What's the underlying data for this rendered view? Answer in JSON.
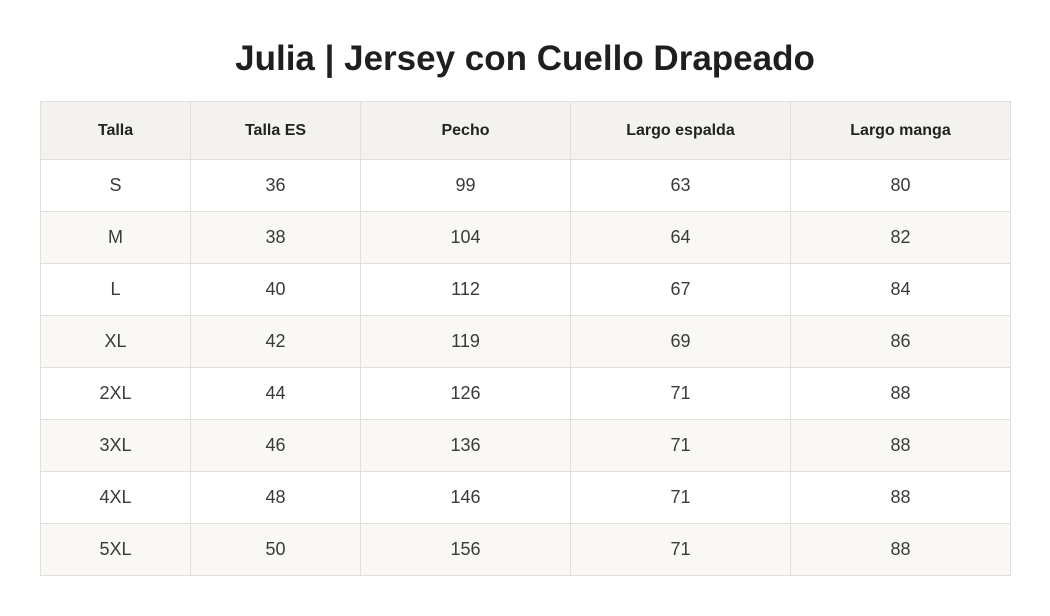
{
  "title": "Julia | Jersey con Cuello Drapeado",
  "table": {
    "headers": [
      "Talla",
      "Talla ES",
      "Pecho",
      "Largo espalda",
      "Largo manga"
    ],
    "rows": [
      [
        "S",
        "36",
        "99",
        "63",
        "80"
      ],
      [
        "M",
        "38",
        "104",
        "64",
        "82"
      ],
      [
        "L",
        "40",
        "112",
        "67",
        "84"
      ],
      [
        "XL",
        "42",
        "119",
        "69",
        "86"
      ],
      [
        "2XL",
        "44",
        "126",
        "71",
        "88"
      ],
      [
        "3XL",
        "46",
        "136",
        "71",
        "88"
      ],
      [
        "4XL",
        "48",
        "146",
        "71",
        "88"
      ],
      [
        "5XL",
        "50",
        "156",
        "71",
        "88"
      ]
    ]
  },
  "colors": {
    "header_bg": "#f3f2ee",
    "stripe_bg": "#f9f8f4",
    "border": "#e0dfdb",
    "title": "#1f1f1f"
  }
}
